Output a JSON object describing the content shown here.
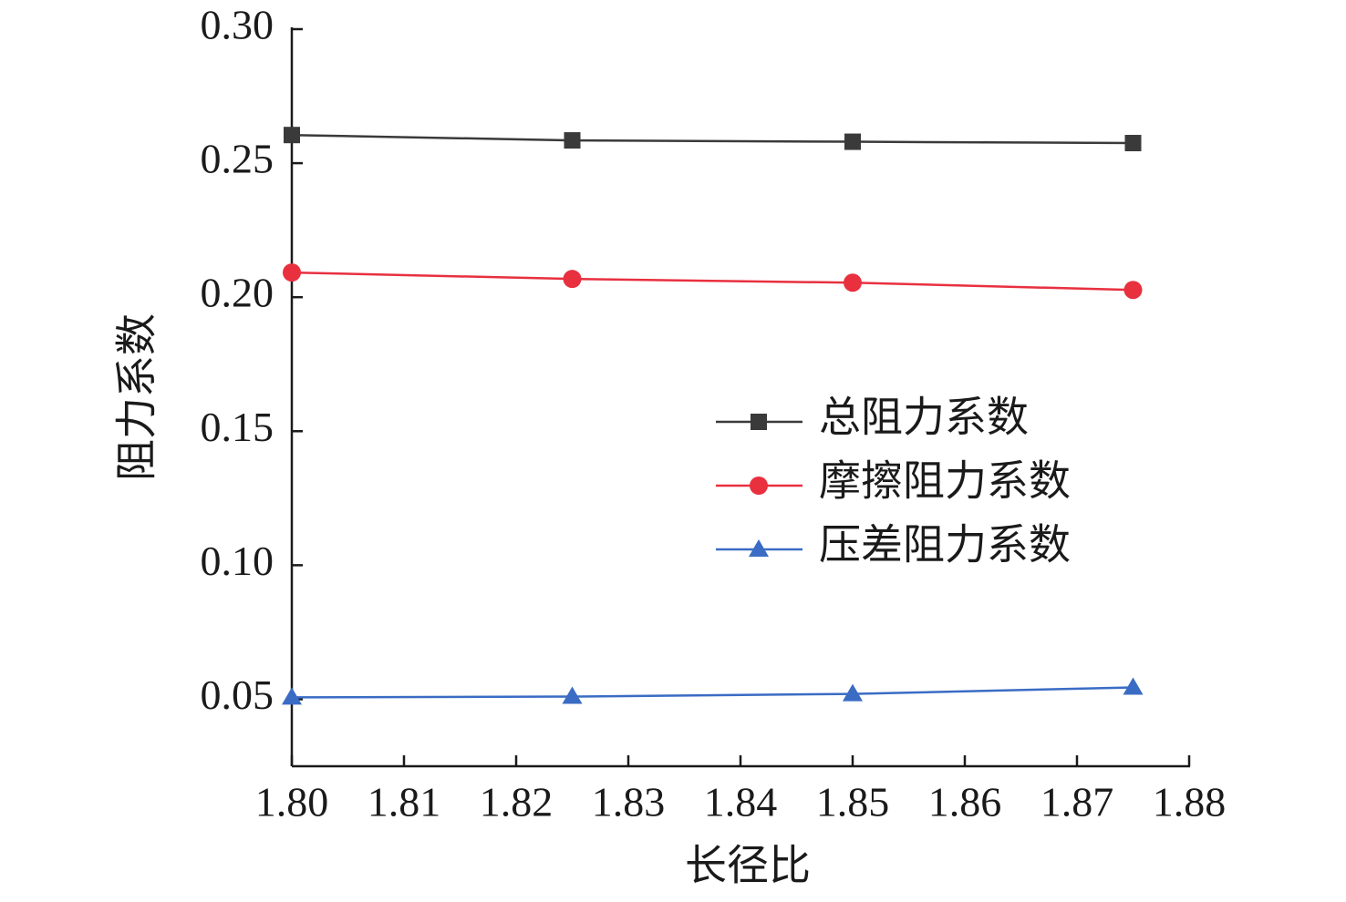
{
  "chart_data": {
    "type": "line",
    "xlabel": "长径比",
    "ylabel": "阻力系数",
    "x": [
      1.8,
      1.825,
      1.85,
      1.875
    ],
    "series": [
      {
        "name": "总阻力系数",
        "color": "#3a3a3a",
        "marker": "square",
        "values": [
          0.2605,
          0.2585,
          0.258,
          0.2575
        ]
      },
      {
        "name": "摩擦阻力系数",
        "color": "#e8303f",
        "marker": "circle",
        "values": [
          0.2092,
          0.2068,
          0.2054,
          0.2027
        ]
      },
      {
        "name": "压差阻力系数",
        "color": "#3a6cc4",
        "marker": "triangle",
        "values": [
          0.0507,
          0.051,
          0.052,
          0.0544
        ]
      }
    ],
    "xlim": [
      1.8,
      1.88
    ],
    "xticks": [
      {
        "value": 1.8,
        "label": "1.80"
      },
      1.81,
      1.82,
      1.83,
      1.84,
      1.85,
      1.86,
      1.87,
      1.88
    ],
    "ylim": [
      0.025,
      0.3
    ],
    "yticks": [
      0.05,
      {
        "value": 0.1,
        "label": "0.10"
      },
      0.15,
      {
        "value": 0.2,
        "label": "0.20"
      },
      0.25,
      {
        "value": 0.3,
        "label": "0.30"
      }
    ],
    "grid": false
  }
}
